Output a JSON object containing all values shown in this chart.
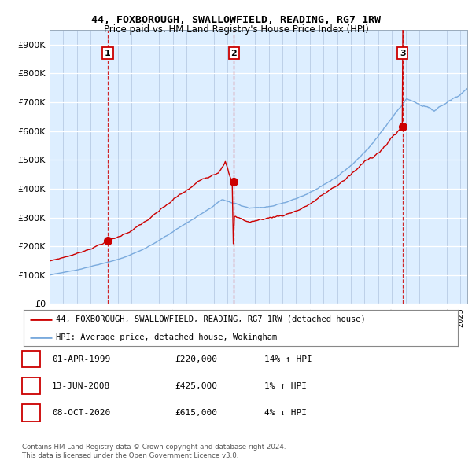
{
  "title1": "44, FOXBOROUGH, SWALLOWFIELD, READING, RG7 1RW",
  "title2": "Price paid vs. HM Land Registry's House Price Index (HPI)",
  "xlim_start": 1995.0,
  "xlim_end": 2025.5,
  "ylim": [
    0,
    950000
  ],
  "yticks": [
    0,
    100000,
    200000,
    300000,
    400000,
    500000,
    600000,
    700000,
    800000,
    900000
  ],
  "ytick_labels": [
    "£0",
    "£100K",
    "£200K",
    "£300K",
    "£400K",
    "£500K",
    "£600K",
    "£700K",
    "£800K",
    "£900K"
  ],
  "sale_dates": [
    1999.25,
    2008.45,
    2020.77
  ],
  "sale_prices": [
    220000,
    425000,
    615000
  ],
  "sale_labels": [
    "1",
    "2",
    "3"
  ],
  "sale_info": [
    {
      "num": "1",
      "date": "01-APR-1999",
      "price": "£220,000",
      "hpi": "14% ↑ HPI"
    },
    {
      "num": "2",
      "date": "13-JUN-2008",
      "price": "£425,000",
      "hpi": "1% ↑ HPI"
    },
    {
      "num": "3",
      "date": "08-OCT-2020",
      "price": "£615,000",
      "hpi": "4% ↓ HPI"
    }
  ],
  "hpi_color": "#7aaadd",
  "price_color": "#cc0000",
  "plot_bg": "#ddeeff",
  "legend_label_price": "44, FOXBOROUGH, SWALLOWFIELD, READING, RG7 1RW (detached house)",
  "legend_label_hpi": "HPI: Average price, detached house, Wokingham",
  "footer1": "Contains HM Land Registry data © Crown copyright and database right 2024.",
  "footer2": "This data is licensed under the Open Government Licence v3.0."
}
